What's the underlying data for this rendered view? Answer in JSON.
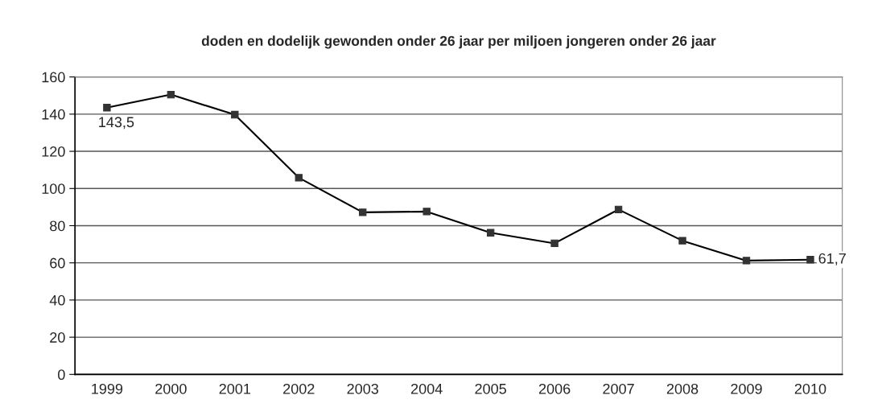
{
  "chart_data": {
    "type": "line",
    "title": "doden en dodelijk gewonden onder 26 jaar per miljoen jongeren onder 26 jaar",
    "categories": [
      "1999",
      "2000",
      "2001",
      "2002",
      "2003",
      "2004",
      "2005",
      "2006",
      "2007",
      "2008",
      "2009",
      "2010"
    ],
    "series": [
      {
        "color": "#000000",
        "values": [
          143.5,
          150.5,
          139.7,
          105.8,
          87.2,
          87.6,
          76.2,
          70.5,
          88.7,
          71.9,
          61.2,
          61.7
        ],
        "value_labels": [
          "143,5",
          null,
          null,
          null,
          null,
          null,
          null,
          null,
          null,
          null,
          null,
          "61,7"
        ]
      }
    ],
    "ylim": [
      0,
      160
    ],
    "yticks": [
      0,
      20,
      40,
      60,
      80,
      100,
      120,
      140,
      160
    ],
    "grid": "y",
    "marker": "square",
    "line_style": "solid"
  }
}
